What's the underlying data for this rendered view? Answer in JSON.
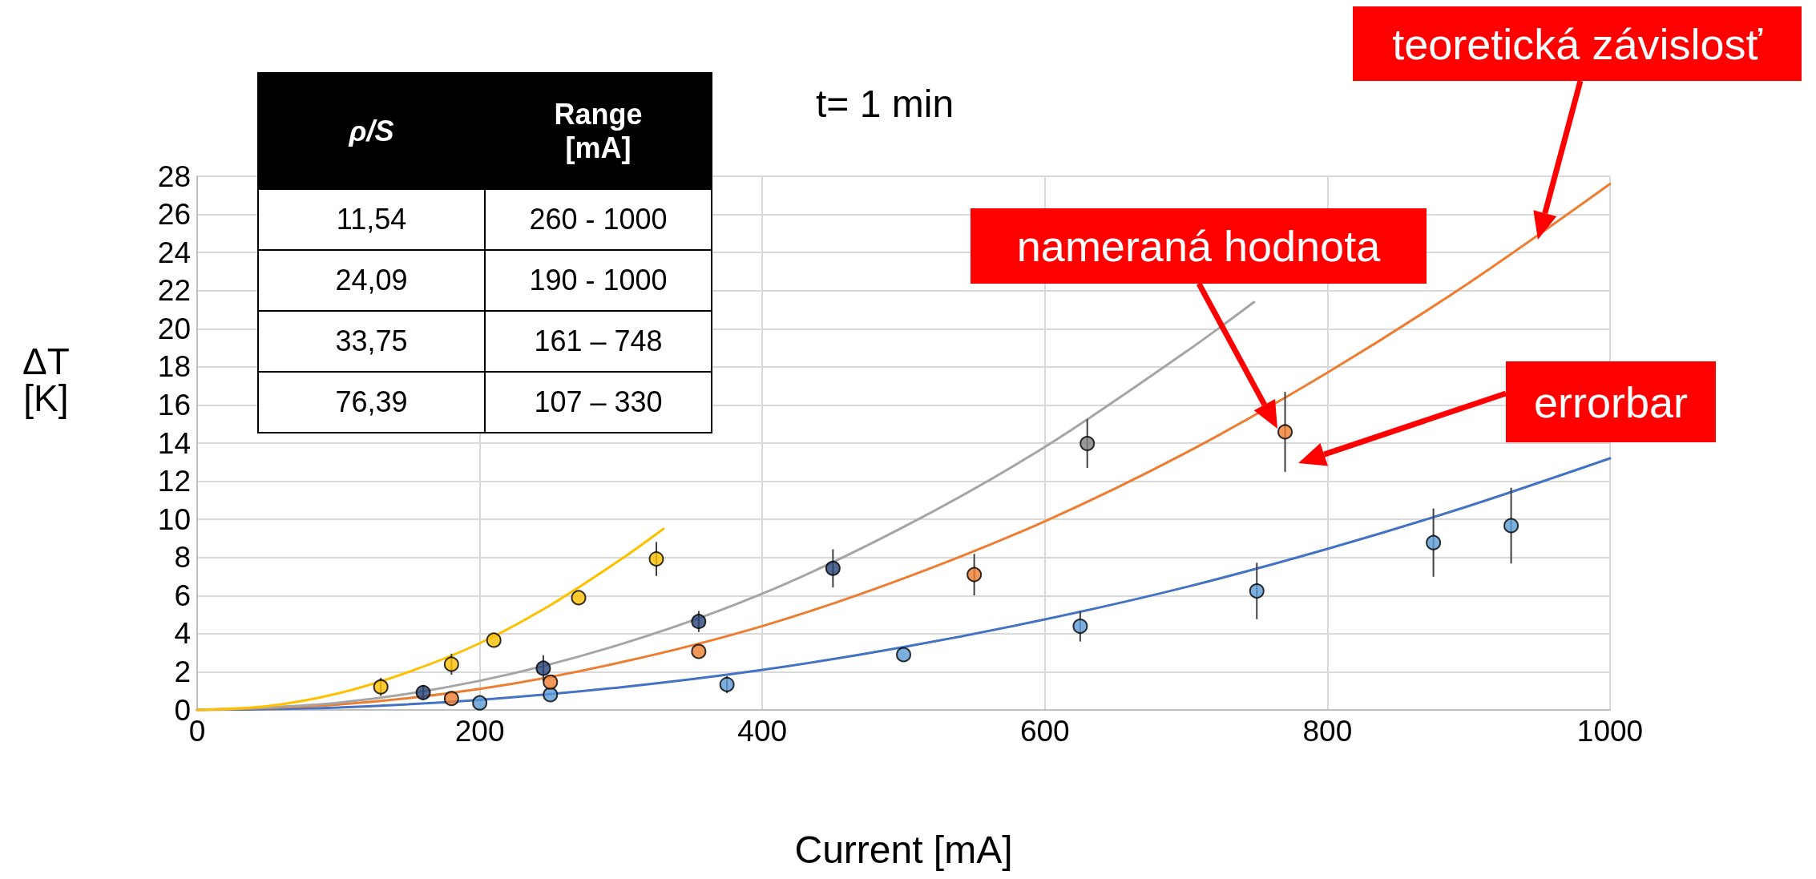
{
  "chart_data": {
    "type": "scatter",
    "title": "t= 1 min",
    "xlabel": "Current [mA]",
    "ylabel": "ΔT [K]",
    "xlim": [
      0,
      1000
    ],
    "xticks": [
      0,
      200,
      400,
      600,
      800,
      1000
    ],
    "ylim": [
      0,
      28
    ],
    "yticks": [
      0,
      2,
      4,
      6,
      8,
      10,
      12,
      14,
      16,
      18,
      20,
      22,
      24,
      26,
      28
    ],
    "grid": true,
    "marker": "circle",
    "series": [
      {
        "type": "line",
        "marker": "none",
        "color": "#4472c4",
        "x": [
          0,
          100,
          200,
          300,
          400,
          500,
          600,
          700,
          800,
          900,
          1000
        ],
        "values": [
          0,
          0.13,
          0.53,
          1.19,
          2.1,
          3.3,
          4.75,
          6.45,
          8.45,
          10.7,
          13.2
        ]
      },
      {
        "type": "line",
        "marker": "none",
        "color": "#ed7d31",
        "x": [
          0,
          100,
          200,
          300,
          400,
          500,
          600,
          700,
          800,
          900,
          1000
        ],
        "values": [
          0,
          0.28,
          1.1,
          2.5,
          4.4,
          6.9,
          9.9,
          13.5,
          17.7,
          22.4,
          27.6
        ]
      },
      {
        "type": "line",
        "marker": "none",
        "color": "#a5a5a5",
        "x": [
          0,
          100,
          200,
          300,
          400,
          500,
          600,
          700,
          748
        ],
        "values": [
          0,
          0.38,
          1.53,
          3.45,
          6.1,
          9.6,
          13.8,
          18.8,
          21.4
        ]
      },
      {
        "type": "line",
        "marker": "none",
        "color": "#ffc000",
        "x": [
          0,
          50,
          100,
          150,
          200,
          250,
          300,
          330
        ],
        "values": [
          0,
          0.2,
          0.87,
          2.0,
          3.5,
          5.5,
          7.9,
          9.5
        ]
      },
      {
        "color": "#5b9bd5",
        "x": [
          200,
          250,
          375,
          500,
          625,
          750,
          875,
          930
        ],
        "values": [
          0.37,
          0.8,
          1.33,
          2.9,
          4.39,
          6.24,
          8.78,
          9.67
        ],
        "errors": [
          null,
          null,
          0.45,
          null,
          0.8,
          1.48,
          1.79,
          1.99
        ]
      },
      {
        "color": "#ed7d31",
        "x": [
          180,
          250,
          355,
          550,
          770
        ],
        "values": [
          0.6,
          1.46,
          3.07,
          7.1,
          14.59
        ],
        "errors": [
          null,
          null,
          null,
          1.09,
          2.1
        ]
      },
      {
        "colors": [
          "#264478",
          "#264478",
          "#264478",
          "#264478",
          "#7f7f7f"
        ],
        "x": [
          160,
          245,
          355,
          450,
          630
        ],
        "values": [
          0.91,
          2.19,
          4.64,
          7.43,
          13.98
        ],
        "errors": [
          0.38,
          0.68,
          0.55,
          1.0,
          1.28
        ]
      },
      {
        "color": "#ffc000",
        "x": [
          130,
          180,
          210,
          270,
          325
        ],
        "values": [
          1.21,
          2.4,
          3.66,
          5.89,
          7.92
        ],
        "errors": [
          0.47,
          0.55,
          null,
          null,
          0.89
        ]
      }
    ],
    "annotations": [
      "teoretická závislosť",
      "nameraná hodnota",
      "errorbar",
      "ρ/S",
      "Range [mA]",
      "11,54",
      "260 - 1000",
      "24,09",
      "190 - 1000",
      "33,75",
      "161 – 748",
      "76,39",
      "107 – 330"
    ]
  }
}
